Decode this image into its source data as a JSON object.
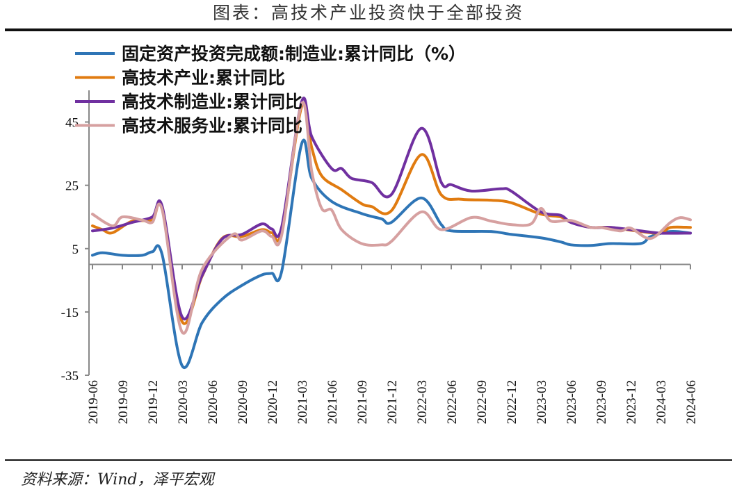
{
  "header": {
    "title": "图表：高技术产业投资快于全部投资"
  },
  "footer": {
    "source": "资料来源：Wind，泽平宏观"
  },
  "chart_data": {
    "type": "line",
    "title": "图表：高技术产业投资快于全部投资",
    "xlabel": "",
    "ylabel": "",
    "ylim": [
      -35,
      55
    ],
    "yticks": [
      45,
      25,
      5,
      -15,
      -35
    ],
    "xlim": [
      "2019-06",
      "2024-06"
    ],
    "xticks": [
      "2019-06",
      "2019-09",
      "2019-12",
      "2020-03",
      "2020-06",
      "2020-09",
      "2020-12",
      "2021-03",
      "2021-06",
      "2021-09",
      "2021-12",
      "2022-03",
      "2022-06",
      "2022-09",
      "2022-12",
      "2023-03",
      "2023-06",
      "2023-09",
      "2023-12",
      "2024-03",
      "2024-06"
    ],
    "grid": false,
    "legend_position": "top-left",
    "series": [
      {
        "name": "固定资产投资完成额:制造业:累计同比（%）",
        "color": "#2e75b6",
        "points": [
          [
            "2019-06",
            2.9
          ],
          [
            "2019-07",
            3.7
          ],
          [
            "2019-09",
            2.9
          ],
          [
            "2019-11",
            2.9
          ],
          [
            "2019-12",
            4.0
          ],
          [
            "2020-01",
            3.0
          ],
          [
            "2020-03",
            -32.0
          ],
          [
            "2020-05",
            -18.4
          ],
          [
            "2020-07",
            -11.0
          ],
          [
            "2020-09",
            -6.6
          ],
          [
            "2020-11",
            -3.3
          ],
          [
            "2020-12",
            -2.8
          ],
          [
            "2021-01",
            -2.0
          ],
          [
            "2021-03",
            38.2
          ],
          [
            "2021-04",
            27.2
          ],
          [
            "2021-06",
            19.9
          ],
          [
            "2021-09",
            16.1
          ],
          [
            "2021-11",
            14.4
          ],
          [
            "2021-12",
            13.3
          ],
          [
            "2022-03",
            21.0
          ],
          [
            "2022-05",
            12.6
          ],
          [
            "2022-06",
            10.6
          ],
          [
            "2022-10",
            10.4
          ],
          [
            "2022-12",
            9.5
          ],
          [
            "2023-03",
            8.4
          ],
          [
            "2023-05",
            7.1
          ],
          [
            "2023-06",
            6.2
          ],
          [
            "2023-08",
            6.0
          ],
          [
            "2023-10",
            6.6
          ],
          [
            "2024-01",
            6.6
          ],
          [
            "2024-02",
            8.8
          ],
          [
            "2024-04",
            10.4
          ],
          [
            "2024-06",
            9.9
          ]
        ]
      },
      {
        "name": "高技术产业:累计同比",
        "color": "#e07b10",
        "points": [
          [
            "2019-06",
            12.2
          ],
          [
            "2019-07",
            11.0
          ],
          [
            "2019-08",
            10.0
          ],
          [
            "2019-10",
            13.7
          ],
          [
            "2019-12",
            14.0
          ],
          [
            "2020-01",
            18.1
          ],
          [
            "2020-03",
            -18.1
          ],
          [
            "2020-05",
            -3.7
          ],
          [
            "2020-07",
            8.2
          ],
          [
            "2020-09",
            8.8
          ],
          [
            "2020-11",
            11.0
          ],
          [
            "2020-12",
            10.0
          ],
          [
            "2021-01",
            10.5
          ],
          [
            "2021-03",
            50.0
          ],
          [
            "2021-04",
            36.9
          ],
          [
            "2021-05",
            28.0
          ],
          [
            "2021-07",
            23.6
          ],
          [
            "2021-09",
            19.2
          ],
          [
            "2021-10",
            18.3
          ],
          [
            "2021-12",
            17.0
          ],
          [
            "2022-03",
            34.7
          ],
          [
            "2022-05",
            22.0
          ],
          [
            "2022-07",
            20.6
          ],
          [
            "2022-10",
            20.3
          ],
          [
            "2022-12",
            19.5
          ],
          [
            "2023-03",
            15.9
          ],
          [
            "2023-05",
            15.0
          ],
          [
            "2023-06",
            13.3
          ],
          [
            "2023-08",
            11.7
          ],
          [
            "2023-10",
            11.7
          ],
          [
            "2024-01",
            10.4
          ],
          [
            "2024-03",
            9.9
          ],
          [
            "2024-04",
            11.7
          ],
          [
            "2024-06",
            11.7
          ]
        ]
      },
      {
        "name": "高技术制造业:累计同比",
        "color": "#7030a0",
        "points": [
          [
            "2019-06",
            10.6
          ],
          [
            "2019-08",
            11.5
          ],
          [
            "2019-10",
            13.3
          ],
          [
            "2019-12",
            15.0
          ],
          [
            "2020-01",
            18.3
          ],
          [
            "2020-03",
            -16.6
          ],
          [
            "2020-05",
            -3.5
          ],
          [
            "2020-07",
            8.0
          ],
          [
            "2020-09",
            9.5
          ],
          [
            "2020-11",
            12.8
          ],
          [
            "2020-12",
            11.2
          ],
          [
            "2021-01",
            12.0
          ],
          [
            "2021-03",
            51.5
          ],
          [
            "2021-04",
            40.4
          ],
          [
            "2021-06",
            30.3
          ],
          [
            "2021-07",
            30.3
          ],
          [
            "2021-08",
            27.2
          ],
          [
            "2021-10",
            25.9
          ],
          [
            "2021-12",
            22.1
          ],
          [
            "2022-03",
            43.0
          ],
          [
            "2022-05",
            25.9
          ],
          [
            "2022-06",
            25.2
          ],
          [
            "2022-08",
            23.2
          ],
          [
            "2022-11",
            23.9
          ],
          [
            "2022-12",
            23.2
          ],
          [
            "2023-03",
            16.6
          ],
          [
            "2023-05",
            15.5
          ],
          [
            "2023-06",
            13.3
          ],
          [
            "2023-08",
            11.7
          ],
          [
            "2023-10",
            11.7
          ],
          [
            "2024-01",
            10.6
          ],
          [
            "2024-03",
            9.9
          ],
          [
            "2024-06",
            9.9
          ]
        ]
      },
      {
        "name": "高技术服务业:累计同比",
        "color": "#d6a0a0",
        "points": [
          [
            "2019-06",
            15.9
          ],
          [
            "2019-08",
            12.2
          ],
          [
            "2019-09",
            15.0
          ],
          [
            "2019-11",
            14.0
          ],
          [
            "2019-12",
            13.3
          ],
          [
            "2020-01",
            17.2
          ],
          [
            "2020-03",
            -21.4
          ],
          [
            "2020-05",
            -1.5
          ],
          [
            "2020-08",
            9.3
          ],
          [
            "2020-09",
            7.7
          ],
          [
            "2020-11",
            10.6
          ],
          [
            "2020-12",
            8.8
          ],
          [
            "2021-01",
            9.5
          ],
          [
            "2021-03",
            50.8
          ],
          [
            "2021-04",
            29.4
          ],
          [
            "2021-05",
            17.7
          ],
          [
            "2021-06",
            17.2
          ],
          [
            "2021-07",
            11.0
          ],
          [
            "2021-09",
            6.6
          ],
          [
            "2021-11",
            6.2
          ],
          [
            "2021-12",
            7.3
          ],
          [
            "2022-03",
            16.6
          ],
          [
            "2022-05",
            11.0
          ],
          [
            "2022-08",
            14.8
          ],
          [
            "2022-10",
            13.7
          ],
          [
            "2022-12",
            12.6
          ],
          [
            "2023-02",
            12.8
          ],
          [
            "2023-03",
            17.7
          ],
          [
            "2023-04",
            13.7
          ],
          [
            "2023-06",
            13.9
          ],
          [
            "2023-08",
            11.7
          ],
          [
            "2023-09",
            11.7
          ],
          [
            "2023-11",
            10.6
          ],
          [
            "2023-12",
            11.5
          ],
          [
            "2024-02",
            8.2
          ],
          [
            "2024-04",
            13.3
          ],
          [
            "2024-05",
            14.8
          ],
          [
            "2024-06",
            14.1
          ]
        ]
      }
    ]
  }
}
